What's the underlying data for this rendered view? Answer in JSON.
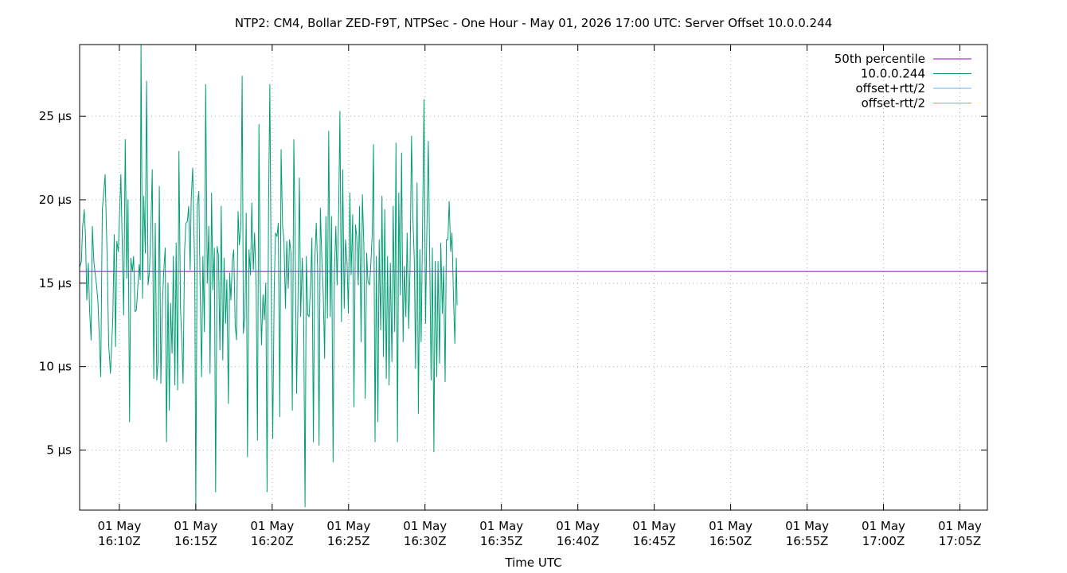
{
  "chart_data": {
    "type": "line",
    "title": "NTP2: CM4, Bollar ZED-F9T, NTPSec - One Hour - May 01, 2026 17:00 UTC: Server Offset 10.0.0.244",
    "xlabel": "Time UTC",
    "ylabel": "",
    "x_range_minutes": [
      "16:07:24",
      "17:06:48"
    ],
    "ylim": [
      1.4,
      29.3
    ],
    "y_ticks": [
      {
        "value": 5,
        "label": "5 µs"
      },
      {
        "value": 10,
        "label": "10 µs"
      },
      {
        "value": 15,
        "label": "15 µs"
      },
      {
        "value": 20,
        "label": "20 µs"
      },
      {
        "value": 25,
        "label": "25 µs"
      }
    ],
    "x_ticks": [
      {
        "time": "16:10",
        "line1": "01 May",
        "line2": "16:10Z"
      },
      {
        "time": "16:15",
        "line1": "01 May",
        "line2": "16:15Z"
      },
      {
        "time": "16:20",
        "line1": "01 May",
        "line2": "16:20Z"
      },
      {
        "time": "16:25",
        "line1": "01 May",
        "line2": "16:25Z"
      },
      {
        "time": "16:30",
        "line1": "01 May",
        "line2": "16:30Z"
      },
      {
        "time": "16:35",
        "line1": "01 May",
        "line2": "16:35Z"
      },
      {
        "time": "16:40",
        "line1": "01 May",
        "line2": "16:40Z"
      },
      {
        "time": "16:45",
        "line1": "01 May",
        "line2": "16:45Z"
      },
      {
        "time": "16:50",
        "line1": "01 May",
        "line2": "16:50Z"
      },
      {
        "time": "16:55",
        "line1": "01 May",
        "line2": "16:55Z"
      },
      {
        "time": "17:00",
        "line1": "01 May",
        "line2": "17:00Z"
      },
      {
        "time": "17:05",
        "line1": "01 May",
        "line2": "17:05Z"
      }
    ],
    "grid": true,
    "legend_position": "top-right",
    "series": [
      {
        "name": "50th percentile",
        "color": "#9400d3",
        "kind": "hline",
        "value": 15.7
      },
      {
        "name": "10.0.0.244",
        "color": "#009e73",
        "kind": "line",
        "points": [
          [
            "16:07:25",
            16.0
          ],
          [
            "16:07:31",
            16.3
          ],
          [
            "16:07:36",
            18.4
          ],
          [
            "16:07:42",
            19.4
          ],
          [
            "16:07:47",
            17.8
          ],
          [
            "16:07:52",
            14.0
          ],
          [
            "16:07:58",
            16.2
          ],
          [
            "16:08:03",
            13.4
          ],
          [
            "16:08:09",
            11.6
          ],
          [
            "16:08:14",
            18.4
          ],
          [
            "16:08:20",
            16.3
          ],
          [
            "16:08:25",
            15.6
          ],
          [
            "16:08:31",
            14.8
          ],
          [
            "16:08:36",
            13.9
          ],
          [
            "16:08:42",
            11.5
          ],
          [
            "16:08:47",
            9.4
          ],
          [
            "16:08:53",
            19.4
          ],
          [
            "16:09:04",
            21.5
          ],
          [
            "16:09:12",
            16.7
          ],
          [
            "16:09:18",
            11.3
          ],
          [
            "16:09:25",
            9.6
          ],
          [
            "16:09:34",
            12.8
          ],
          [
            "16:09:40",
            17.9
          ],
          [
            "16:09:45",
            11.2
          ],
          [
            "16:09:50",
            17.5
          ],
          [
            "16:09:56",
            16.9
          ],
          [
            "16:10:06",
            21.5
          ],
          [
            "16:10:17",
            13.1
          ],
          [
            "16:10:23",
            23.6
          ],
          [
            "16:10:29",
            15.3
          ],
          [
            "16:10:34",
            20.0
          ],
          [
            "16:10:40",
            6.7
          ],
          [
            "16:10:45",
            16.5
          ],
          [
            "16:10:51",
            15.7
          ],
          [
            "16:10:56",
            16.6
          ],
          [
            "16:11:02",
            13.3
          ],
          [
            "16:11:07",
            13.4
          ],
          [
            "16:11:18",
            16.1
          ],
          [
            "16:11:22",
            15.2
          ],
          [
            "16:11:25",
            29.3
          ],
          [
            "16:11:31",
            14.1
          ],
          [
            "16:11:36",
            20.2
          ],
          [
            "16:11:42",
            16.8
          ],
          [
            "16:11:47",
            27.1
          ],
          [
            "16:11:53",
            14.9
          ],
          [
            "16:11:58",
            15.6
          ],
          [
            "16:12:04",
            18.5
          ],
          [
            "16:12:09",
            21.8
          ],
          [
            "16:12:15",
            9.3
          ],
          [
            "16:12:21",
            18.6
          ],
          [
            "16:12:27",
            9.2
          ],
          [
            "16:12:32",
            10.3
          ],
          [
            "16:12:37",
            20.8
          ],
          [
            "16:12:43",
            9.0
          ],
          [
            "16:12:49",
            13.8
          ],
          [
            "16:12:54",
            15.7
          ],
          [
            "16:13:00",
            17.1
          ],
          [
            "16:13:05",
            5.5
          ],
          [
            "16:13:11",
            15.0
          ],
          [
            "16:13:16",
            7.4
          ],
          [
            "16:13:21",
            13.8
          ],
          [
            "16:13:27",
            10.8
          ],
          [
            "16:13:32",
            16.6
          ],
          [
            "16:13:38",
            8.9
          ],
          [
            "16:13:43",
            17.4
          ],
          [
            "16:13:49",
            8.6
          ],
          [
            "16:13:54",
            22.9
          ],
          [
            "16:14:00",
            13.5
          ],
          [
            "16:14:05",
            11.6
          ],
          [
            "16:14:10",
            9.0
          ],
          [
            "16:14:16",
            16.9
          ],
          [
            "16:14:21",
            18.6
          ],
          [
            "16:14:27",
            18.7
          ],
          [
            "16:14:32",
            19.6
          ],
          [
            "16:14:38",
            15.8
          ],
          [
            "16:14:42",
            20.0
          ],
          [
            "16:14:48",
            21.9
          ],
          [
            "16:14:56",
            15.6
          ],
          [
            "16:15:00",
            1.4
          ],
          [
            "16:15:06",
            19.7
          ],
          [
            "16:15:12",
            20.5
          ],
          [
            "16:15:17",
            14.9
          ],
          [
            "16:15:23",
            9.4
          ],
          [
            "16:15:28",
            16.6
          ],
          [
            "16:15:34",
            12.1
          ],
          [
            "16:15:39",
            26.9
          ],
          [
            "16:15:45",
            15.0
          ],
          [
            "16:15:51",
            18.4
          ],
          [
            "16:15:56",
            9.6
          ],
          [
            "16:16:02",
            20.4
          ],
          [
            "16:16:07",
            14.6
          ],
          [
            "16:16:13",
            17.1
          ],
          [
            "16:16:18",
            2.5
          ],
          [
            "16:16:24",
            17.2
          ],
          [
            "16:16:29",
            16.7
          ],
          [
            "16:16:35",
            11.0
          ],
          [
            "16:16:40",
            19.6
          ],
          [
            "16:16:46",
            10.4
          ],
          [
            "16:16:51",
            16.5
          ],
          [
            "16:16:57",
            12.6
          ],
          [
            "16:17:02",
            15.2
          ],
          [
            "16:17:08",
            7.8
          ],
          [
            "16:17:13",
            15.6
          ],
          [
            "16:17:18",
            14.0
          ],
          [
            "16:17:24",
            16.4
          ],
          [
            "16:17:29",
            17.0
          ],
          [
            "16:17:35",
            12.5
          ],
          [
            "16:17:40",
            11.6
          ],
          [
            "16:17:46",
            19.3
          ],
          [
            "16:17:51",
            17.3
          ],
          [
            "16:17:57",
            18.4
          ],
          [
            "16:18:02",
            27.4
          ],
          [
            "16:18:07",
            12.0
          ],
          [
            "16:18:13",
            13.0
          ],
          [
            "16:18:18",
            19.2
          ],
          [
            "16:18:23",
            4.6
          ],
          [
            "16:18:29",
            17.0
          ],
          [
            "16:18:35",
            15.5
          ],
          [
            "16:18:40",
            19.8
          ],
          [
            "16:18:46",
            15.8
          ],
          [
            "16:18:51",
            18.0
          ],
          [
            "16:18:57",
            14.9
          ],
          [
            "16:19:02",
            5.6
          ],
          [
            "16:19:08",
            24.5
          ],
          [
            "16:19:13",
            15.1
          ],
          [
            "16:19:18",
            11.3
          ],
          [
            "16:19:24",
            14.3
          ],
          [
            "16:19:29",
            12.8
          ],
          [
            "16:19:35",
            15.0
          ],
          [
            "16:19:40",
            2.5
          ],
          [
            "16:19:46",
            19.8
          ],
          [
            "16:19:51",
            26.9
          ],
          [
            "16:19:57",
            12.9
          ],
          [
            "16:20:02",
            5.7
          ],
          [
            "16:20:08",
            14.7
          ],
          [
            "16:20:13",
            18.0
          ],
          [
            "16:20:19",
            17.8
          ],
          [
            "16:20:24",
            18.6
          ],
          [
            "16:20:30",
            7.0
          ],
          [
            "16:20:35",
            23.0
          ],
          [
            "16:20:41",
            18.4
          ],
          [
            "16:20:46",
            17.7
          ],
          [
            "16:20:52",
            13.5
          ],
          [
            "16:20:57",
            17.5
          ],
          [
            "16:21:03",
            14.7
          ],
          [
            "16:21:08",
            17.6
          ],
          [
            "16:21:14",
            16.8
          ],
          [
            "16:21:19",
            7.4
          ],
          [
            "16:21:25",
            23.6
          ],
          [
            "16:21:30",
            17.9
          ],
          [
            "16:21:36",
            8.4
          ],
          [
            "16:21:41",
            13.5
          ],
          [
            "16:21:47",
            21.3
          ],
          [
            "16:21:52",
            13.0
          ],
          [
            "16:21:58",
            16.5
          ],
          [
            "16:22:03",
            14.0
          ],
          [
            "16:22:09",
            1.6
          ],
          [
            "16:22:14",
            16.6
          ],
          [
            "16:22:20",
            13.1
          ],
          [
            "16:22:25",
            13.0
          ],
          [
            "16:22:31",
            14.9
          ],
          [
            "16:22:36",
            17.7
          ],
          [
            "16:22:42",
            5.5
          ],
          [
            "16:22:47",
            16.2
          ],
          [
            "16:22:53",
            18.6
          ],
          [
            "16:22:58",
            16.0
          ],
          [
            "16:23:04",
            5.3
          ],
          [
            "16:23:09",
            19.5
          ],
          [
            "16:23:15",
            16.4
          ],
          [
            "16:23:20",
            14.6
          ],
          [
            "16:23:26",
            10.5
          ],
          [
            "16:23:31",
            19.0
          ],
          [
            "16:23:37",
            12.9
          ],
          [
            "16:23:42",
            24.1
          ],
          [
            "16:23:48",
            13.0
          ],
          [
            "16:23:53",
            19.0
          ],
          [
            "16:23:59",
            4.3
          ],
          [
            "16:24:04",
            15.6
          ],
          [
            "16:24:10",
            18.4
          ],
          [
            "16:24:15",
            14.9
          ],
          [
            "16:24:21",
            19.2
          ],
          [
            "16:24:26",
            25.3
          ],
          [
            "16:24:32",
            12.7
          ],
          [
            "16:24:37",
            21.8
          ],
          [
            "16:24:43",
            13.5
          ],
          [
            "16:24:48",
            17.6
          ],
          [
            "16:24:54",
            16.2
          ],
          [
            "16:24:59",
            13.2
          ],
          [
            "16:25:05",
            20.4
          ],
          [
            "16:25:10",
            15.5
          ],
          [
            "16:25:16",
            19.1
          ],
          [
            "16:25:21",
            7.6
          ],
          [
            "16:25:27",
            18.5
          ],
          [
            "16:25:32",
            17.8
          ],
          [
            "16:25:38",
            14.9
          ],
          [
            "16:25:43",
            19.6
          ],
          [
            "16:25:49",
            11.5
          ],
          [
            "16:25:54",
            20.3
          ],
          [
            "16:26:00",
            17.2
          ],
          [
            "16:26:05",
            8.1
          ],
          [
            "16:26:11",
            16.8
          ],
          [
            "16:26:16",
            15.1
          ],
          [
            "16:26:22",
            14.9
          ],
          [
            "16:26:27",
            16.0
          ],
          [
            "16:26:33",
            18.0
          ],
          [
            "16:26:38",
            23.3
          ],
          [
            "16:26:44",
            5.5
          ],
          [
            "16:26:49",
            16.6
          ],
          [
            "16:26:55",
            6.7
          ],
          [
            "16:27:00",
            17.6
          ],
          [
            "16:27:06",
            12.2
          ],
          [
            "16:27:11",
            20.2
          ],
          [
            "16:27:17",
            10.6
          ],
          [
            "16:27:22",
            19.4
          ],
          [
            "16:27:28",
            9.3
          ],
          [
            "16:27:33",
            16.6
          ],
          [
            "16:27:39",
            8.9
          ],
          [
            "16:27:44",
            16.2
          ],
          [
            "16:27:50",
            10.3
          ],
          [
            "16:27:55",
            19.6
          ],
          [
            "16:28:01",
            12.1
          ],
          [
            "16:28:06",
            23.4
          ],
          [
            "16:28:12",
            5.5
          ],
          [
            "16:28:17",
            20.4
          ],
          [
            "16:28:23",
            14.3
          ],
          [
            "16:28:28",
            22.8
          ],
          [
            "16:28:34",
            11.5
          ],
          [
            "16:28:39",
            16.0
          ],
          [
            "16:28:45",
            13.0
          ],
          [
            "16:28:50",
            18.0
          ],
          [
            "16:28:56",
            12.3
          ],
          [
            "16:29:01",
            15.7
          ],
          [
            "16:29:07",
            23.8
          ],
          [
            "16:29:12",
            19.1
          ],
          [
            "16:29:18",
            16.4
          ],
          [
            "16:29:23",
            9.9
          ],
          [
            "16:29:29",
            21.0
          ],
          [
            "16:29:34",
            7.2
          ],
          [
            "16:29:40",
            17.0
          ],
          [
            "16:29:45",
            11.5
          ],
          [
            "16:29:51",
            19.3
          ],
          [
            "16:29:56",
            26.0
          ],
          [
            "16:30:02",
            12.6
          ],
          [
            "16:30:07",
            17.9
          ],
          [
            "16:30:13",
            23.5
          ],
          [
            "16:30:18",
            17.1
          ],
          [
            "16:30:24",
            9.2
          ],
          [
            "16:30:29",
            17.1
          ],
          [
            "16:30:35",
            4.9
          ],
          [
            "16:30:40",
            16.3
          ],
          [
            "16:30:46",
            9.4
          ],
          [
            "16:30:51",
            16.3
          ],
          [
            "16:30:57",
            10.2
          ],
          [
            "16:31:02",
            17.4
          ],
          [
            "16:31:08",
            13.2
          ],
          [
            "16:31:13",
            16.0
          ],
          [
            "16:31:19",
            9.1
          ],
          [
            "16:31:24",
            17.6
          ],
          [
            "16:31:30",
            17.6
          ],
          [
            "16:31:35",
            19.9
          ],
          [
            "16:31:41",
            16.9
          ],
          [
            "16:31:46",
            18.0
          ],
          [
            "16:31:52",
            14.0
          ],
          [
            "16:31:57",
            11.4
          ],
          [
            "16:32:03",
            16.5
          ],
          [
            "16:32:06",
            13.7
          ]
        ]
      },
      {
        "name": "offset+rtt/2",
        "color": "#56b4e9",
        "kind": "legend-only"
      },
      {
        "name": "offset-rtt/2",
        "color": "#e69f00",
        "kind": "legend-only"
      }
    ]
  }
}
